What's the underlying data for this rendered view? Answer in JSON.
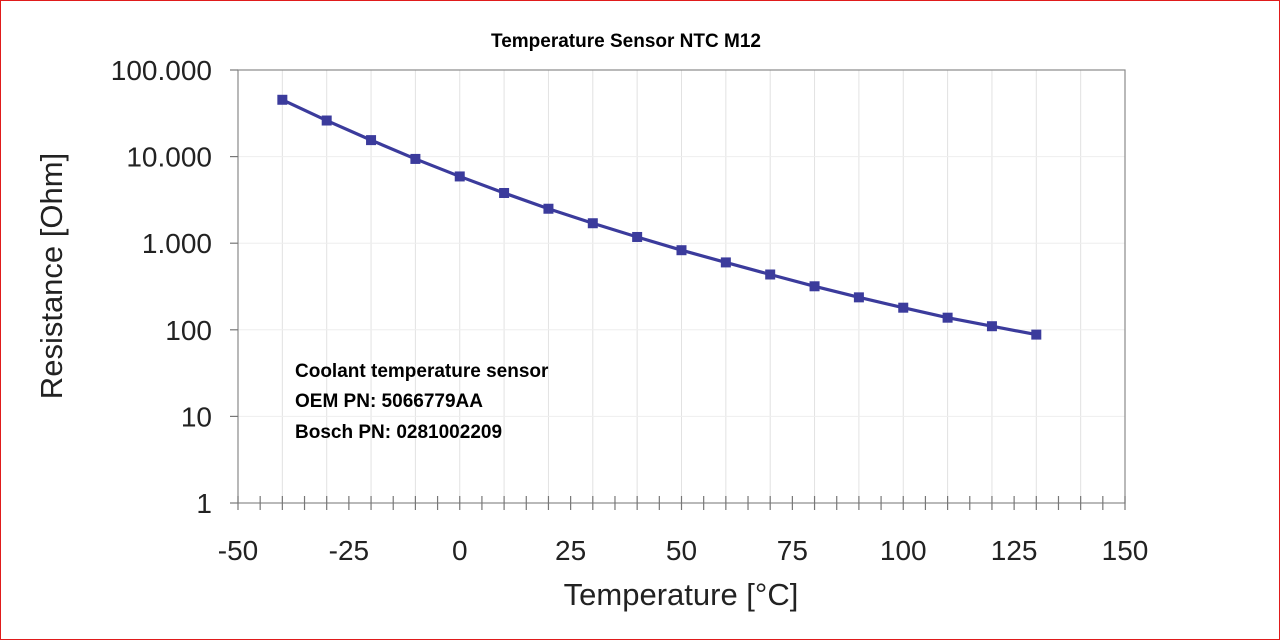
{
  "chart_data": {
    "type": "line",
    "title": "Temperature Sensor NTC M12",
    "xlabel": "Temperature [°C]",
    "ylabel": "Resistance [Ohm]",
    "xlim": [
      -50,
      150
    ],
    "ylim": [
      1,
      100000
    ],
    "yscale": "log",
    "grid": true,
    "x_ticks": [
      -50,
      -25,
      0,
      25,
      50,
      75,
      100,
      125,
      150
    ],
    "x_tick_labels": [
      "-50",
      "-25",
      "0",
      "25",
      "50",
      "75",
      "100",
      "125",
      "150"
    ],
    "y_ticks": [
      1,
      10,
      100,
      1000,
      10000,
      100000
    ],
    "y_tick_labels": [
      "1",
      "10",
      "100",
      "1.000",
      "10.000",
      "100.000"
    ],
    "series": [
      {
        "color": "#3b3b9c",
        "x": [
          -40,
          -30,
          -20,
          -10,
          0,
          10,
          20,
          30,
          40,
          50,
          60,
          70,
          80,
          90,
          100,
          110,
          120,
          130
        ],
        "y": [
          45300,
          26100,
          15500,
          9400,
          5900,
          3800,
          2500,
          1700,
          1180,
          830,
          600,
          435,
          318,
          237,
          180,
          138,
          110,
          88
        ]
      }
    ],
    "annotations": [
      "Coolant temperature sensor",
      "OEM PN: 5066779AA",
      "Bosch PN: 0281002209"
    ]
  }
}
